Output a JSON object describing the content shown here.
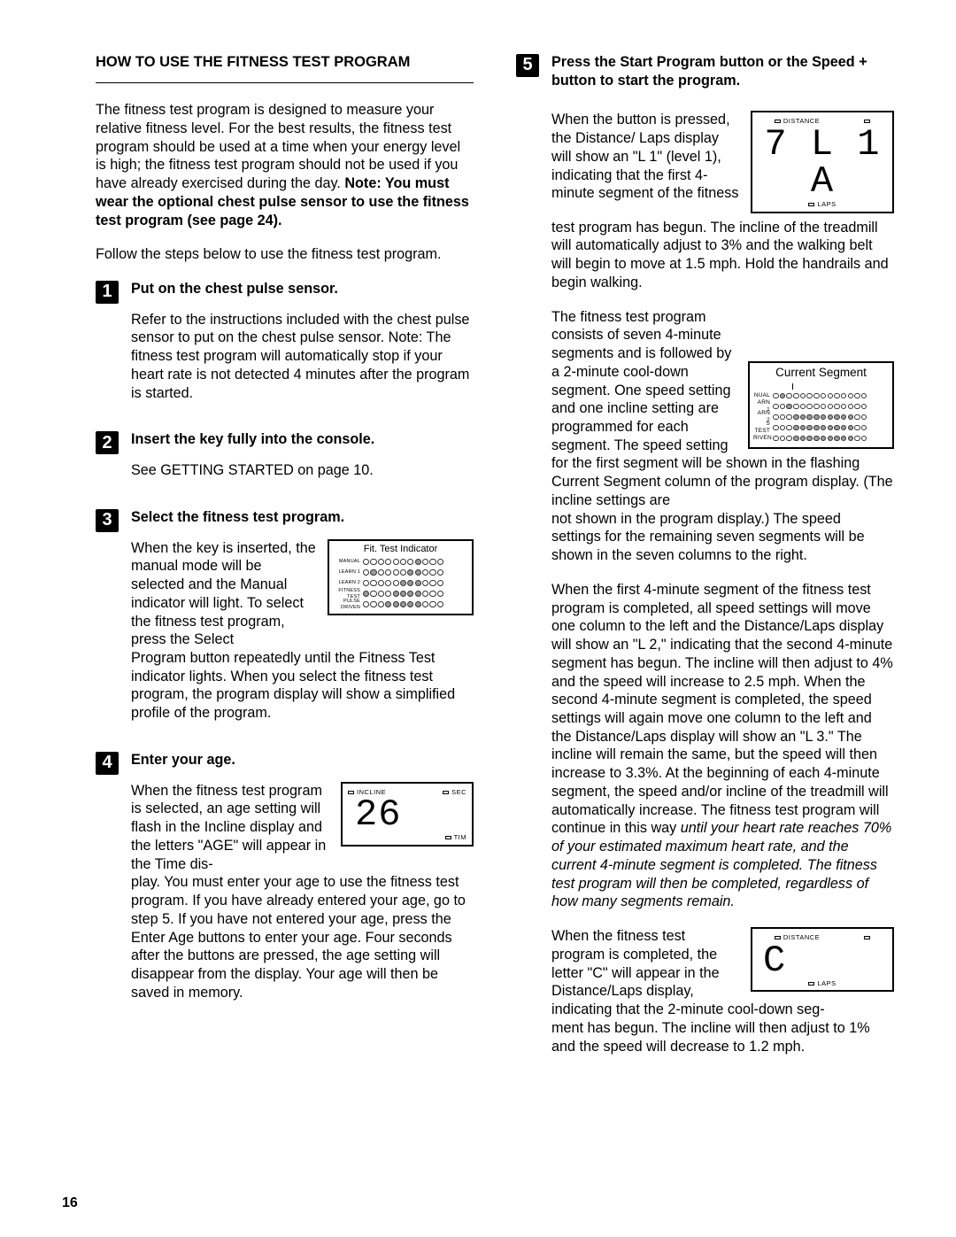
{
  "pageNumber": "16",
  "title": "HOW TO USE THE FITNESS TEST PROGRAM",
  "intro_part1": "The fitness test program is designed to measure your relative fitness level. For the best results, the fitness test program should be used at a time when your energy level is high; the fitness test program should not be used if you have already exercised during the day. ",
  "intro_bold": "Note: You must wear the optional chest pulse sensor to use the fitness test program (see page 24).",
  "intro_follow": "Follow the steps below to use the fitness test program.",
  "s1": {
    "num": "1",
    "head": "Put on the chest pulse sensor.",
    "body": "Refer to the instructions included with the chest pulse sensor to put on the chest pulse sensor. Note: The fitness test program will automatically stop if your heart rate is not detected 4 minutes after the program is started."
  },
  "s2": {
    "num": "2",
    "head": "Insert the key fully into the console.",
    "body": "See GETTING STARTED on page 10."
  },
  "s3": {
    "num": "3",
    "head": "Select the fitness test program.",
    "body_a": "When the key is inserted, the manual mode will be selected and the Manual indicator will light. To select the fitness test program, press the Select",
    "body_b": "Program button repeatedly until the Fitness Test indicator lights. When you select the fitness test program, the program display will show a simplified profile of the program.",
    "fig_label": "Fit. Test Indicator",
    "rows": [
      "MANUAL",
      "LEARN 1",
      "LEARN 2",
      "FITNESS TEST",
      "PULSE DRIVEN"
    ]
  },
  "s4": {
    "num": "4",
    "head": "Enter your age.",
    "body_a": "When the fitness test program is selected, an age setting will flash in the Incline display and the letters \"AGE\" will appear in the Time dis-",
    "body_b": "play. You must enter your age to use the fitness test program. If you have already entered your age, go to step 5. If you have not entered your age, press the Enter Age buttons to enter your age. Four seconds after the buttons are pressed, the age setting will disappear from the display. Your age will then be saved in memory.",
    "lcd_top_left": "INCLINE",
    "lcd_top_right": "SEC",
    "lcd_val": "26",
    "lcd_bot_right": "TIM"
  },
  "s5": {
    "num": "5",
    "head": "Press the Start Program button or the Speed + button to start the program.",
    "p1a": "When the button is pressed, the Distance/ Laps display will show an \"L 1\" (level 1), indicating that the first 4-minute segment of the fitness",
    "p1b": "test program has begun. The incline of the treadmill will automatically adjust to 3% and the walking belt will begin to move at 1.5 mph. Hold the handrails and begin walking.",
    "lcd1_top": "DISTANCE",
    "lcd1_val": "7 L  1 A",
    "lcd1_bot": "LAPS",
    "p2a": "The fitness test program consists of seven 4-minute segments and is followed by a 2-minute cool-down segment. One speed setting and one incline setting are programmed for each segment. The speed setting for the first segment will be shown in the flashing Current Segment column of the program display. (The incline settings are",
    "p2b": "not shown in the program display.) The speed settings for the remaining seven segments will be shown in the seven columns to the right.",
    "seg_label": "Current Segment",
    "seg_rows": [
      "NUAL",
      "ARN 1",
      "ARN 2",
      "S TEST",
      "RIVEN"
    ],
    "p3a": "When the first 4-minute segment of the fitness test program is completed, all speed settings will move one column to the left and the Distance/Laps display will show an \"L 2,\" indicating that the second 4-minute segment has begun. The incline will then adjust to 4% and the speed will increase to 2.5 mph. When the second 4-minute segment is completed, the speed settings will again move one column to the left and the Distance/Laps display will show an \"L 3.\" The incline will remain the same, but the speed will then increase to 3.3%. At the beginning of each 4-minute segment, the speed and/or incline of the treadmill will automatically increase. The fitness test program will continue in this way ",
    "p3i": "until your heart rate reaches 70% of your estimated maximum heart rate, and the current 4-minute segment is completed. The fitness test program will then be completed, regardless of how many segments remain.",
    "p4a": "When the fitness test program is completed, the letter \"C\" will appear in the Distance/Laps display, indicating that the 2-minute cool-down seg-",
    "p4b": "ment has begun. The incline will then adjust to 1% and the speed will decrease to 1.2 mph.",
    "lcd2_top": "DISTANCE",
    "lcd2_val": "C",
    "lcd2_bot": "LAPS"
  }
}
